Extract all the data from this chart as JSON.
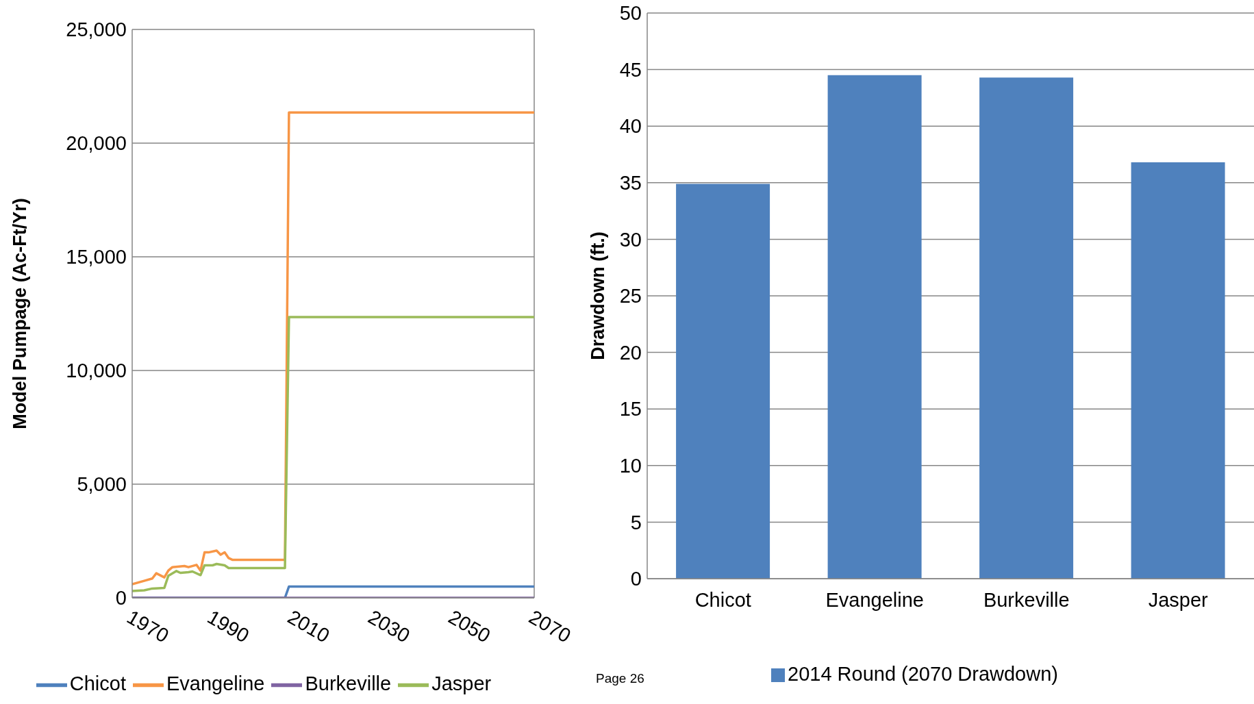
{
  "chart_data": [
    {
      "type": "line",
      "ylabel": "Model Pumpage (Ac-Ft/Yr)",
      "xlim": [
        1970,
        2070
      ],
      "xticks": [
        1970,
        1990,
        2010,
        2030,
        2050,
        2070
      ],
      "ylim": [
        0,
        25000
      ],
      "yticks": [
        {
          "value": 0,
          "label": "0"
        },
        {
          "value": 5000,
          "label": "5,000"
        },
        {
          "value": 10000,
          "label": "10,000"
        },
        {
          "value": 15000,
          "label": "15,000"
        },
        {
          "value": 20000,
          "label": "20,000"
        },
        {
          "value": 25000,
          "label": "25,000"
        }
      ],
      "grid": "y",
      "legend": "bottom",
      "line_style": "solid",
      "marker": "none",
      "series": [
        {
          "name": "Chicot",
          "color": "#4f81bd",
          "x": [
            1970,
            2008,
            2009,
            2070
          ],
          "values": [
            0,
            0,
            500,
            500
          ]
        },
        {
          "name": "Evangeline",
          "color": "#f79646",
          "x": [
            1970,
            1973,
            1975,
            1976,
            1978,
            1979,
            1980,
            1983,
            1984,
            1986,
            1987,
            1988,
            1989,
            1991,
            1992,
            1993,
            1994,
            1995,
            2008,
            2009,
            2070
          ],
          "values": [
            600,
            750,
            850,
            1080,
            900,
            1200,
            1350,
            1400,
            1350,
            1450,
            1200,
            2000,
            2000,
            2080,
            1900,
            2000,
            1750,
            1670,
            1670,
            21350,
            21350
          ]
        },
        {
          "name": "Burkeville",
          "color": "#8064a2",
          "x": [
            1970,
            2070
          ],
          "values": [
            0,
            0
          ]
        },
        {
          "name": "Jasper",
          "color": "#9bbb59",
          "x": [
            1970,
            1973,
            1975,
            1978,
            1979,
            1981,
            1982,
            1984,
            1985,
            1987,
            1988,
            1990,
            1991,
            1993,
            1994,
            2008,
            2009,
            2070
          ],
          "values": [
            300,
            330,
            410,
            440,
            970,
            1180,
            1100,
            1130,
            1160,
            1000,
            1430,
            1430,
            1490,
            1430,
            1310,
            1310,
            12350,
            12350
          ]
        }
      ]
    },
    {
      "type": "bar",
      "ylabel": "Drawdown (ft.)",
      "categories": [
        "Chicot",
        "Evangeline",
        "Burkeville",
        "Jasper"
      ],
      "ylim": [
        0,
        50
      ],
      "yticks": [
        0,
        5,
        10,
        15,
        20,
        25,
        30,
        35,
        40,
        45,
        50
      ],
      "grid": "y",
      "legend": "bottom",
      "annotations": [
        "Page 26"
      ],
      "series": [
        {
          "name": "2014 Round (2070 Drawdown)",
          "color": "#4f81bd",
          "values": [
            34.9,
            44.5,
            44.3,
            36.8
          ]
        }
      ]
    }
  ]
}
